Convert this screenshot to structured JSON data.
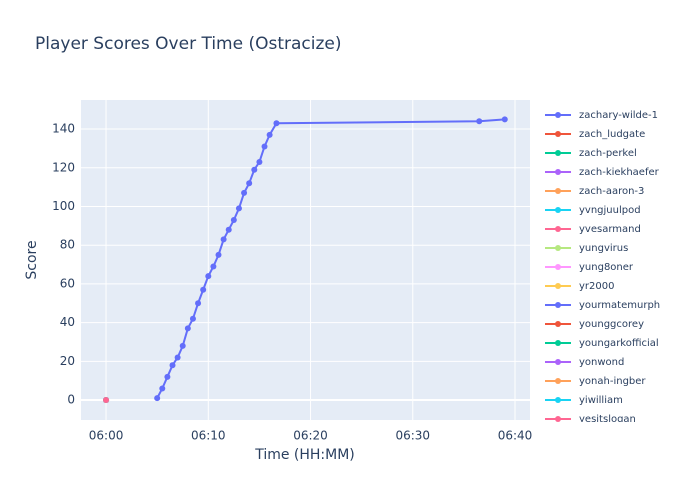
{
  "chart_data": {
    "type": "line",
    "title": "Player Scores Over Time (Ostracize)",
    "x_label": "Time (HH:MM)",
    "y_label": "Score",
    "xlim": [
      "05:57:33",
      "06:41:28"
    ],
    "ylim": [
      -10.3,
      155
    ],
    "xticks": [
      {
        "value": "06:00:00",
        "label": "06:00"
      },
      {
        "value": "06:10:00",
        "label": "06:10"
      },
      {
        "value": "06:20:00",
        "label": "06:20"
      },
      {
        "value": "06:30:00",
        "label": "06:30"
      },
      {
        "value": "06:40:00",
        "label": "06:40"
      }
    ],
    "yticks": [
      0,
      20,
      40,
      60,
      80,
      100,
      120,
      140
    ],
    "grid": true,
    "legend": "right",
    "series": [
      {
        "name": "zachary-wilde-1",
        "color": "#636efa",
        "x": [
          "06:05:00",
          "06:05:30",
          "06:06:00",
          "06:06:30",
          "06:07:00",
          "06:07:30",
          "06:08:00",
          "06:08:30",
          "06:09:00",
          "06:09:30",
          "06:10:00",
          "06:10:30",
          "06:11:00",
          "06:11:30",
          "06:12:00",
          "06:12:30",
          "06:13:00",
          "06:13:30",
          "06:14:00",
          "06:14:30",
          "06:15:00",
          "06:15:30",
          "06:16:00",
          "06:16:40",
          "06:36:30",
          "06:39:00"
        ],
        "values": [
          1,
          6,
          12,
          18,
          22,
          28,
          37,
          42,
          50,
          57,
          64,
          69,
          75,
          83,
          88,
          93,
          99,
          107,
          112,
          119,
          123,
          131,
          137,
          143,
          144,
          145
        ]
      },
      {
        "name": "zach_ludgate",
        "color": "#EF553B",
        "x": [
          "06:00:00"
        ],
        "values": [
          0
        ]
      },
      {
        "name": "zach-perkel",
        "color": "#00cc96",
        "x": [
          "06:00:00"
        ],
        "values": [
          0
        ]
      },
      {
        "name": "zach-kiekhaefer",
        "color": "#ab63fa",
        "x": [
          "06:00:00"
        ],
        "values": [
          0
        ]
      },
      {
        "name": "zach-aaron-3",
        "color": "#FFA15A",
        "x": [
          "06:00:00"
        ],
        "values": [
          0
        ]
      },
      {
        "name": "yvngjuulpod",
        "color": "#19d3f3",
        "x": [
          "06:00:00"
        ],
        "values": [
          0
        ]
      },
      {
        "name": "yvesarmand",
        "color": "#FF6692",
        "x": [
          "06:00:00"
        ],
        "values": [
          0
        ]
      },
      {
        "name": "yungvirus",
        "color": "#B6E880",
        "x": [
          "06:00:00"
        ],
        "values": [
          0
        ]
      },
      {
        "name": "yung8oner",
        "color": "#FF97FF",
        "x": [
          "06:00:00"
        ],
        "values": [
          0
        ]
      },
      {
        "name": "yr2000",
        "color": "#FECB52",
        "x": [
          "06:00:00"
        ],
        "values": [
          0
        ]
      },
      {
        "name": "yourmatemurph",
        "color": "#636efa",
        "x": [
          "06:00:00"
        ],
        "values": [
          0
        ]
      },
      {
        "name": "younggcorey",
        "color": "#EF553B",
        "x": [
          "06:00:00"
        ],
        "values": [
          0
        ]
      },
      {
        "name": "youngarkofficial",
        "color": "#00cc96",
        "x": [
          "06:00:00"
        ],
        "values": [
          0
        ]
      },
      {
        "name": "yonwond",
        "color": "#ab63fa",
        "x": [
          "06:00:00"
        ],
        "values": [
          0
        ]
      },
      {
        "name": "yonah-ingber",
        "color": "#FFA15A",
        "x": [
          "06:00:00"
        ],
        "values": [
          0
        ]
      },
      {
        "name": "yiwilliam",
        "color": "#19d3f3",
        "x": [
          "06:00:00"
        ],
        "values": [
          0
        ]
      },
      {
        "name": "yesitslogan",
        "color": "#FF6692",
        "x": [
          "06:00:00"
        ],
        "values": [
          0
        ]
      }
    ]
  }
}
